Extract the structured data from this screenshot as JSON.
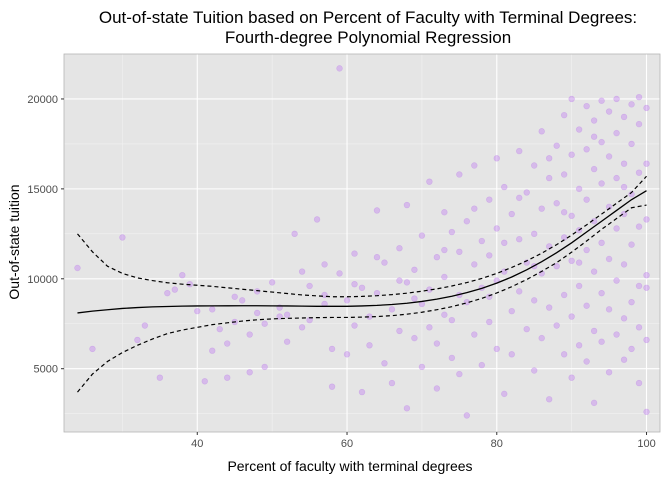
{
  "chart_data": {
    "type": "scatter",
    "title_line1": "Out-of-state Tuition based on Percent of Faculty with Terminal Degrees:",
    "title_line2": "Fourth-degree Polynomial Regression",
    "xlabel": "Percent of faculty with terminal degrees",
    "ylabel": "Out-of-state tuition",
    "xlim": [
      22.2,
      101.8
    ],
    "ylim": [
      1480,
      22500
    ],
    "xticks": [
      40,
      60,
      80,
      100
    ],
    "yticks": [
      5000,
      10000,
      15000,
      20000
    ],
    "xtick_labels": [
      "40",
      "60",
      "80",
      "100"
    ],
    "ytick_labels": [
      "5000",
      "10000",
      "15000",
      "20000"
    ],
    "grid": true,
    "colors": {
      "panel": "#e5e5e5",
      "grid_major": "#ffffff",
      "points": "#c07ef0",
      "fit_line": "#000000"
    },
    "scatter_points": [
      [
        24,
        10600
      ],
      [
        26,
        6100
      ],
      [
        30,
        12300
      ],
      [
        33,
        7400
      ],
      [
        35,
        4500
      ],
      [
        37,
        9400
      ],
      [
        38,
        10200
      ],
      [
        40,
        8200
      ],
      [
        41,
        4300
      ],
      [
        42,
        6000
      ],
      [
        43,
        7200
      ],
      [
        44,
        6400
      ],
      [
        44,
        4500
      ],
      [
        45,
        9000
      ],
      [
        46,
        8800
      ],
      [
        47,
        6900
      ],
      [
        47,
        4800
      ],
      [
        48,
        8100
      ],
      [
        49,
        7500
      ],
      [
        49,
        5100
      ],
      [
        50,
        9800
      ],
      [
        51,
        8400
      ],
      [
        52,
        8000
      ],
      [
        52,
        6500
      ],
      [
        53,
        12500
      ],
      [
        54,
        7300
      ],
      [
        55,
        9600
      ],
      [
        55,
        7700
      ],
      [
        56,
        13300
      ],
      [
        57,
        10800
      ],
      [
        57,
        8600
      ],
      [
        58,
        6100
      ],
      [
        58,
        4000
      ],
      [
        59,
        21700
      ],
      [
        59,
        10300
      ],
      [
        60,
        8800
      ],
      [
        60,
        5800
      ],
      [
        61,
        11400
      ],
      [
        61,
        7400
      ],
      [
        62,
        9500
      ],
      [
        62,
        3700
      ],
      [
        63,
        7900
      ],
      [
        63,
        6300
      ],
      [
        64,
        13800
      ],
      [
        64,
        9200
      ],
      [
        65,
        10900
      ],
      [
        65,
        5300
      ],
      [
        66,
        8300
      ],
      [
        66,
        4200
      ],
      [
        67,
        11700
      ],
      [
        67,
        7100
      ],
      [
        68,
        14100
      ],
      [
        68,
        9800
      ],
      [
        68,
        2800
      ],
      [
        69,
        10500
      ],
      [
        69,
        6700
      ],
      [
        70,
        12400
      ],
      [
        70,
        8600
      ],
      [
        70,
        5100
      ],
      [
        71,
        15400
      ],
      [
        71,
        9400
      ],
      [
        71,
        7300
      ],
      [
        72,
        11200
      ],
      [
        72,
        6400
      ],
      [
        72,
        3900
      ],
      [
        73,
        13700
      ],
      [
        73,
        10100
      ],
      [
        73,
        8000
      ],
      [
        74,
        12600
      ],
      [
        74,
        7700
      ],
      [
        74,
        5600
      ],
      [
        75,
        15800
      ],
      [
        75,
        11500
      ],
      [
        75,
        9100
      ],
      [
        75,
        4700
      ],
      [
        76,
        13200
      ],
      [
        76,
        8700
      ],
      [
        76,
        2400
      ],
      [
        77,
        16300
      ],
      [
        77,
        10800
      ],
      [
        77,
        6900
      ],
      [
        78,
        12100
      ],
      [
        78,
        9500
      ],
      [
        78,
        5200
      ],
      [
        79,
        14400
      ],
      [
        79,
        11300
      ],
      [
        79,
        7600
      ],
      [
        80,
        16700
      ],
      [
        80,
        12800
      ],
      [
        80,
        9900
      ],
      [
        80,
        6100
      ],
      [
        81,
        15100
      ],
      [
        81,
        10400
      ],
      [
        81,
        3600
      ],
      [
        82,
        13600
      ],
      [
        82,
        8200
      ],
      [
        82,
        5800
      ],
      [
        83,
        17100
      ],
      [
        83,
        12200
      ],
      [
        83,
        9300
      ],
      [
        84,
        14800
      ],
      [
        84,
        10900
      ],
      [
        84,
        7200
      ],
      [
        85,
        16300
      ],
      [
        85,
        12500
      ],
      [
        85,
        8800
      ],
      [
        85,
        4900
      ],
      [
        86,
        18200
      ],
      [
        86,
        13900
      ],
      [
        86,
        10300
      ],
      [
        86,
        6700
      ],
      [
        87,
        15600
      ],
      [
        87,
        11800
      ],
      [
        87,
        8400
      ],
      [
        87,
        3300
      ],
      [
        88,
        17400
      ],
      [
        88,
        14200
      ],
      [
        88,
        10700
      ],
      [
        88,
        7400
      ],
      [
        89,
        19100
      ],
      [
        89,
        15800
      ],
      [
        89,
        12300
      ],
      [
        89,
        9100
      ],
      [
        89,
        5800
      ],
      [
        90,
        20000
      ],
      [
        90,
        16900
      ],
      [
        90,
        13500
      ],
      [
        90,
        11000
      ],
      [
        90,
        7900
      ],
      [
        90,
        4500
      ],
      [
        91,
        18300
      ],
      [
        91,
        15000
      ],
      [
        91,
        12700
      ],
      [
        91,
        9600
      ],
      [
        91,
        6300
      ],
      [
        92,
        19600
      ],
      [
        92,
        17200
      ],
      [
        92,
        14400
      ],
      [
        92,
        11600
      ],
      [
        92,
        8500
      ],
      [
        92,
        5400
      ],
      [
        93,
        18800
      ],
      [
        93,
        16100
      ],
      [
        93,
        13200
      ],
      [
        93,
        10400
      ],
      [
        93,
        7100
      ],
      [
        93,
        3100
      ],
      [
        94,
        19900
      ],
      [
        94,
        17600
      ],
      [
        94,
        15300
      ],
      [
        94,
        12000
      ],
      [
        94,
        9200
      ],
      [
        94,
        6500
      ],
      [
        95,
        19300
      ],
      [
        95,
        16800
      ],
      [
        95,
        14000
      ],
      [
        95,
        11100
      ],
      [
        95,
        8300
      ],
      [
        95,
        4800
      ],
      [
        96,
        20000
      ],
      [
        96,
        18100
      ],
      [
        96,
        15600
      ],
      [
        96,
        12800
      ],
      [
        96,
        9900
      ],
      [
        96,
        6900
      ],
      [
        97,
        19000
      ],
      [
        97,
        16400
      ],
      [
        97,
        13600
      ],
      [
        97,
        10800
      ],
      [
        97,
        7800
      ],
      [
        97,
        5500
      ],
      [
        98,
        19700
      ],
      [
        98,
        17500
      ],
      [
        98,
        14700
      ],
      [
        98,
        11900
      ],
      [
        98,
        8700
      ],
      [
        98,
        6100
      ],
      [
        99,
        20100
      ],
      [
        99,
        18600
      ],
      [
        99,
        15900
      ],
      [
        99,
        12900
      ],
      [
        99,
        9600
      ],
      [
        99,
        4200
      ],
      [
        100,
        19500
      ],
      [
        100,
        16400
      ],
      [
        100,
        13300
      ],
      [
        100,
        10200
      ],
      [
        100,
        6600
      ],
      [
        100,
        2600
      ],
      [
        100,
        9500
      ],
      [
        99,
        7300
      ],
      [
        97,
        15100
      ],
      [
        93,
        17900
      ],
      [
        91,
        10900
      ],
      [
        89,
        13700
      ],
      [
        87,
        16700
      ],
      [
        85,
        10700
      ],
      [
        83,
        14500
      ],
      [
        81,
        12000
      ],
      [
        79,
        9000
      ],
      [
        77,
        13900
      ],
      [
        73,
        11600
      ],
      [
        69,
        8900
      ],
      [
        67,
        9900
      ],
      [
        64,
        11200
      ],
      [
        61,
        9700
      ],
      [
        57,
        9100
      ],
      [
        54,
        10400
      ],
      [
        51,
        7900
      ],
      [
        48,
        9300
      ],
      [
        45,
        7600
      ],
      [
        42,
        8300
      ],
      [
        39,
        9700
      ],
      [
        36,
        9200
      ],
      [
        32,
        6600
      ]
    ],
    "series": [
      {
        "values_x": [
          24,
          26,
          28,
          30,
          32,
          34,
          36,
          38,
          40,
          42,
          44,
          46,
          48,
          50,
          52,
          54,
          56,
          58,
          60,
          62,
          64,
          66,
          68,
          70,
          72,
          74,
          76,
          78,
          80,
          82,
          84,
          86,
          88,
          90,
          92,
          94,
          96,
          98,
          100
        ],
        "fit": [
          8100,
          8200,
          8280,
          8350,
          8400,
          8440,
          8460,
          8480,
          8490,
          8495,
          8498,
          8500,
          8500,
          8495,
          8490,
          8480,
          8470,
          8470,
          8470,
          8490,
          8520,
          8570,
          8640,
          8740,
          8870,
          9030,
          9230,
          9470,
          9760,
          10100,
          10500,
          10950,
          11450,
          12000,
          12600,
          13200,
          13800,
          14400,
          14900
        ],
        "upper": [
          12500,
          11500,
          10700,
          10300,
          10050,
          9900,
          9780,
          9700,
          9640,
          9580,
          9500,
          9420,
          9340,
          9260,
          9180,
          9100,
          9050,
          9000,
          9000,
          9020,
          9060,
          9120,
          9200,
          9310,
          9440,
          9600,
          9790,
          10020,
          10300,
          10630,
          11000,
          11420,
          11900,
          12430,
          13000,
          13600,
          14200,
          14800,
          15700
        ],
        "lower": [
          3700,
          4700,
          5400,
          5900,
          6300,
          6650,
          6950,
          7150,
          7300,
          7450,
          7550,
          7650,
          7720,
          7770,
          7800,
          7820,
          7840,
          7850,
          7850,
          7870,
          7900,
          7950,
          8030,
          8140,
          8280,
          8450,
          8660,
          8910,
          9210,
          9560,
          9960,
          10410,
          10900,
          11480,
          12100,
          12750,
          13350,
          13950,
          14100
        ]
      }
    ]
  }
}
